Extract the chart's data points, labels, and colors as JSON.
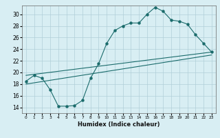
{
  "title": "",
  "xlabel": "Humidex (Indice chaleur)",
  "ylabel": "",
  "bg_color": "#d8eef3",
  "grid_color": "#b0cfd8",
  "line_color": "#1a6b6b",
  "xlim": [
    -0.5,
    23.5
  ],
  "ylim": [
    13,
    31.5
  ],
  "xticks": [
    0,
    1,
    2,
    3,
    4,
    5,
    6,
    7,
    8,
    9,
    10,
    11,
    12,
    13,
    14,
    15,
    16,
    17,
    18,
    19,
    20,
    21,
    22,
    23
  ],
  "yticks": [
    14,
    16,
    18,
    20,
    22,
    24,
    26,
    28,
    30
  ],
  "main_line": {
    "x": [
      0,
      1,
      2,
      3,
      4,
      5,
      6,
      7,
      8,
      9,
      10,
      11,
      12,
      13,
      14,
      15,
      16,
      17,
      18,
      19,
      20,
      21,
      22,
      23
    ],
    "y": [
      18.5,
      19.5,
      19.0,
      17.0,
      14.2,
      14.2,
      14.3,
      15.2,
      19.0,
      21.5,
      25.0,
      27.2,
      28.0,
      28.5,
      28.5,
      30.0,
      31.2,
      30.5,
      29.0,
      28.8,
      28.3,
      26.5,
      25.0,
      23.5
    ]
  },
  "upper_line": {
    "x": [
      0,
      23
    ],
    "y": [
      19.5,
      23.5
    ]
  },
  "lower_line": {
    "x": [
      0,
      23
    ],
    "y": [
      18.0,
      23.0
    ]
  }
}
